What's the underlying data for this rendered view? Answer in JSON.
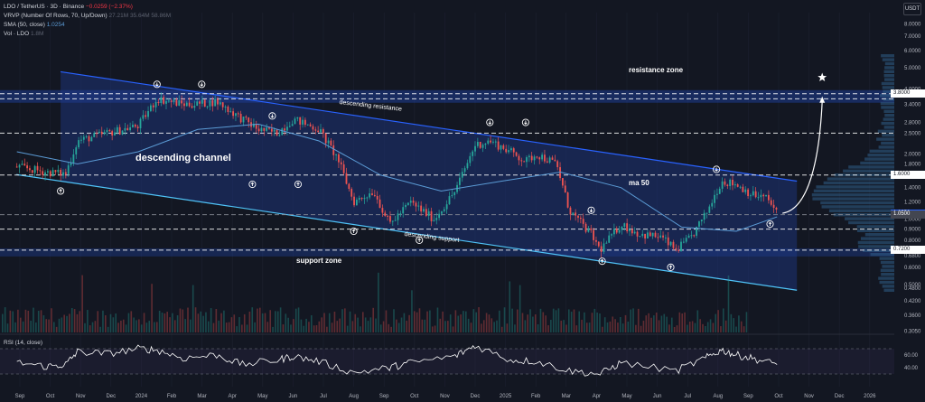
{
  "legend": {
    "symbol": "LDO / TetherUS · 3D · Binance",
    "change": "−0.0259 (−2.37%)",
    "vrvp": "VRVP (Number Of Rows, 70, Up/Down)",
    "vrvp_values": "27.21M  35.64M  58.86M",
    "sma": "SMA (50, close)",
    "sma_value": "1.0254",
    "vol": "Vol · LDO",
    "vol_value": "1.8M",
    "rsi": "RSI (14, close)"
  },
  "currency": "USDT",
  "annotations": {
    "resistance_zone": "resistance zone",
    "support_zone": "support zone",
    "descending_resistance": "descending resistance",
    "descending_support": "descending support",
    "descending_channel": "descending channel",
    "ma50": "ma 50"
  },
  "colors": {
    "background": "#131722",
    "up": "#26a69a",
    "down": "#ef5350",
    "channel": "#1e3a8a",
    "channel_line": "#2962ff",
    "support_line": "#4fc3f7",
    "ma": "#5b9bd5",
    "current_price": "#2962ff"
  },
  "price_labels": [
    {
      "label": "3.8000",
      "value": 3.8,
      "style": "white"
    },
    {
      "label": "1.6000",
      "value": 1.6,
      "style": "white"
    },
    {
      "label": "1.0658",
      "value": 1.0658,
      "style": "blue"
    },
    {
      "label": "1.0500",
      "value": 1.05,
      "style": "dark"
    },
    {
      "label": "0.7200",
      "value": 0.72,
      "style": "white"
    }
  ],
  "chart_data": [
    {
      "type": "line",
      "title": "LDO / TetherUS · 3D · Binance",
      "scale": "log",
      "ylim": [
        0.3,
        9.0
      ],
      "y_ticks": [
        "8.0000",
        "7.0000",
        "6.0000",
        "5.0000",
        "4.0000",
        "3.4000",
        "2.8000",
        "2.5000",
        "2.0000",
        "1.8000",
        "1.4000",
        "1.2000",
        "1.0000",
        "0.9000",
        "0.8000",
        "0.6800",
        "0.6000",
        "0.5000",
        "0.4800",
        "0.4200",
        "0.3600",
        "0.3050"
      ],
      "x_ticks": [
        "Sep",
        "Oct",
        "Nov",
        "Dec",
        "2024",
        "Feb",
        "Mar",
        "Apr",
        "May",
        "Jun",
        "Jul",
        "Aug",
        "Sep",
        "Oct",
        "Nov",
        "Dec",
        "2025",
        "Feb",
        "Mar",
        "Apr",
        "May",
        "Jun",
        "Jul",
        "Aug",
        "Sep",
        "Oct",
        "Nov",
        "Dec",
        "2026"
      ],
      "x_range": [
        "2023-08-15",
        "2026-01-31"
      ],
      "close_series": {
        "name": "LDO",
        "x": [
          "2023-09-01",
          "2023-10-01",
          "2023-10-20",
          "2023-11-01",
          "2023-12-01",
          "2024-01-01",
          "2024-01-20",
          "2024-02-15",
          "2024-03-01",
          "2024-03-20",
          "2024-04-15",
          "2024-05-01",
          "2024-05-20",
          "2024-06-05",
          "2024-07-01",
          "2024-07-20",
          "2024-08-05",
          "2024-08-25",
          "2024-09-10",
          "2024-10-01",
          "2024-10-25",
          "2024-11-15",
          "2024-12-05",
          "2024-12-20",
          "2025-01-10",
          "2025-01-25",
          "2025-02-05",
          "2025-02-25",
          "2025-03-10",
          "2025-04-01",
          "2025-04-10",
          "2025-05-01",
          "2025-05-20",
          "2025-06-10",
          "2025-06-25",
          "2025-07-10",
          "2025-07-25",
          "2025-08-10",
          "2025-08-25",
          "2025-09-10",
          "2025-09-25",
          "2025-10-05"
        ],
        "y": [
          1.75,
          1.65,
          1.62,
          2.3,
          2.5,
          2.7,
          3.6,
          3.4,
          3.4,
          3.5,
          2.9,
          2.6,
          2.5,
          2.9,
          2.6,
          1.9,
          1.2,
          1.35,
          0.95,
          1.2,
          1.0,
          1.35,
          2.2,
          2.3,
          2.05,
          1.85,
          2.0,
          1.8,
          1.1,
          0.85,
          0.72,
          0.95,
          0.85,
          0.83,
          0.72,
          0.82,
          1.05,
          1.5,
          1.45,
          1.3,
          1.25,
          1.0658
        ]
      },
      "sma50": {
        "x": [
          "2023-09-01",
          "2023-11-01",
          "2024-01-01",
          "2024-03-01",
          "2024-05-01",
          "2024-07-01",
          "2024-09-01",
          "2024-11-01",
          "2025-01-01",
          "2025-03-01",
          "2025-05-01",
          "2025-07-01",
          "2025-08-25",
          "2025-10-05"
        ],
        "y": [
          2.05,
          1.8,
          2.05,
          2.6,
          2.75,
          2.3,
          1.6,
          1.35,
          1.5,
          1.65,
          1.4,
          0.92,
          0.88,
          1.0254
        ]
      },
      "channel": {
        "upper": {
          "x": [
            "2023-10-15",
            "2025-10-25"
          ],
          "y": [
            4.8,
            1.5
          ]
        },
        "lower": {
          "x": [
            "2023-10-15",
            "2025-10-25"
          ],
          "y": [
            1.5,
            0.47
          ]
        }
      },
      "horizontal_levels": [
        3.8,
        3.6,
        2.5,
        1.6,
        1.05,
        0.9,
        0.72
      ],
      "forecast_target": 3.8
    },
    {
      "type": "line",
      "title": "RSI (14, close)",
      "ylim": [
        10,
        90
      ],
      "y_ticks": [
        "60.00",
        "40.00"
      ],
      "series": [
        {
          "name": "",
          "x": [
            "2023-09-01",
            "2023-10-01",
            "2023-10-20",
            "2023-11-01",
            "2023-12-01",
            "2024-01-01",
            "2024-01-20",
            "2024-02-15",
            "2024-03-20",
            "2024-04-15",
            "2024-05-20",
            "2024-06-05",
            "2024-07-01",
            "2024-08-05",
            "2024-09-10",
            "2024-10-01",
            "2024-11-15",
            "2024-12-05",
            "2025-01-10",
            "2025-02-05",
            "2025-03-10",
            "2025-04-10",
            "2025-05-01",
            "2025-06-25",
            "2025-07-25",
            "2025-08-10",
            "2025-08-25",
            "2025-09-10",
            "2025-10-05"
          ],
          "values": [
            48,
            42,
            45,
            65,
            62,
            70,
            68,
            55,
            60,
            45,
            52,
            58,
            50,
            32,
            40,
            48,
            58,
            75,
            52,
            50,
            35,
            30,
            48,
            35,
            55,
            68,
            60,
            55,
            45
          ]
        }
      ]
    }
  ]
}
